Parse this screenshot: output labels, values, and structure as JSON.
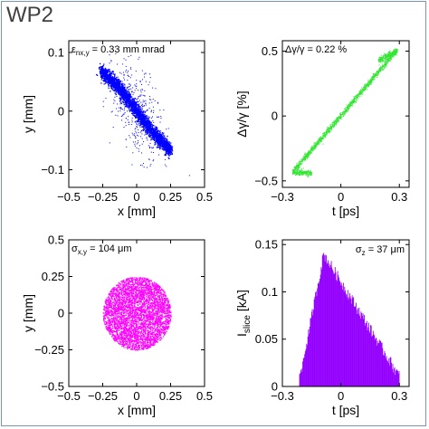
{
  "panel_title": "WP2",
  "colors": {
    "blue": "#0000ff",
    "green": "#32e632",
    "magenta": "#ff00ff",
    "purple": "#9400ff",
    "frame": "#7a93b8"
  },
  "chart_data": [
    {
      "type": "scatter",
      "annotation": "ε_nx,y = 0.33 mm mrad",
      "annotation_main": "ε",
      "annotation_sub": "nx,y",
      "annotation_rest": " = 0.33 mm mrad",
      "xlabel": "x [mm]",
      "ylabel": "y [mm]",
      "xlim": [
        -0.5,
        0.5
      ],
      "ylim": [
        -0.13,
        0.12
      ],
      "xticks": [
        -0.5,
        -0.25,
        0,
        0.25,
        0.5
      ],
      "xtick_labels": [
        "−0.5",
        "−0.25",
        "0",
        "0.25",
        "0.5"
      ],
      "yticks": [
        -0.1,
        0,
        0.1
      ],
      "ytick_labels": [
        "−0.1",
        "0",
        "0.1"
      ],
      "color": "blue",
      "distribution": "tilted elliptical core from (-0.25, 0.06) to (0.25, -0.06) with sparse halo",
      "core_x_range": [
        -0.27,
        0.25
      ],
      "core_slope": -0.22
    },
    {
      "type": "scatter",
      "annotation": "Δγ/γ = 0.22 %",
      "annotation_main": "Δγ/γ = 0.22 %",
      "xlabel": "t [ps]",
      "ylabel": "Δγ/γ [%]",
      "xlim": [
        -0.3,
        0.35
      ],
      "ylim": [
        -0.55,
        0.58
      ],
      "xticks": [
        -0.3,
        0,
        0.3
      ],
      "xtick_labels": [
        "−0.3",
        "0",
        "0.3"
      ],
      "yticks": [
        -0.5,
        0,
        0.5
      ],
      "ytick_labels": [
        "−0.5",
        "0",
        "0.5"
      ],
      "color": "green",
      "linear_chirp": {
        "t_start": -0.25,
        "e_start": -0.43,
        "t_end": 0.28,
        "e_end": 0.5
      }
    },
    {
      "type": "scatter",
      "annotation": "σ_x,y = 104 μm",
      "annotation_main": "σ",
      "annotation_sub": "x,y",
      "annotation_rest": " = 104 μm",
      "xlabel": "x [mm]",
      "ylabel": "y [mm]",
      "xlim": [
        -0.5,
        0.5
      ],
      "ylim": [
        -0.5,
        0.5
      ],
      "xticks": [
        -0.5,
        -0.25,
        0,
        0.25,
        0.5
      ],
      "xtick_labels": [
        "−0.5",
        "−0.25",
        "0",
        "0.25",
        "0.5"
      ],
      "yticks": [
        -0.5,
        -0.25,
        0,
        0.25,
        0.5
      ],
      "ytick_labels": [
        "−0.5",
        "−0.25",
        "0",
        "0.25",
        "0.5"
      ],
      "color": "magenta",
      "disk_radius": 0.25
    },
    {
      "type": "bar",
      "annotation": "σ_z = 37 μm",
      "annotation_main": "σ",
      "annotation_sub": "z",
      "annotation_rest": " = 37 μm",
      "xlabel": "t [ps]",
      "ylabel": "I_slice [kA]",
      "ylabel_main": "I",
      "ylabel_sub": "slice",
      "ylabel_rest": " [kA]",
      "xlim": [
        -0.3,
        0.35
      ],
      "ylim": [
        0,
        0.155
      ],
      "xticks": [
        -0.3,
        0,
        0.3
      ],
      "xtick_labels": [
        "−0.3",
        "0",
        "0.3"
      ],
      "yticks": [
        0,
        0.05,
        0.1,
        0.15
      ],
      "ytick_labels": [
        "0",
        "0.05",
        "0.1",
        "0.15"
      ],
      "color": "purple",
      "profile": {
        "t_start": -0.22,
        "t_peak": -0.09,
        "t_end": 0.3,
        "peak": 0.14,
        "end_value": 0.01
      }
    }
  ]
}
